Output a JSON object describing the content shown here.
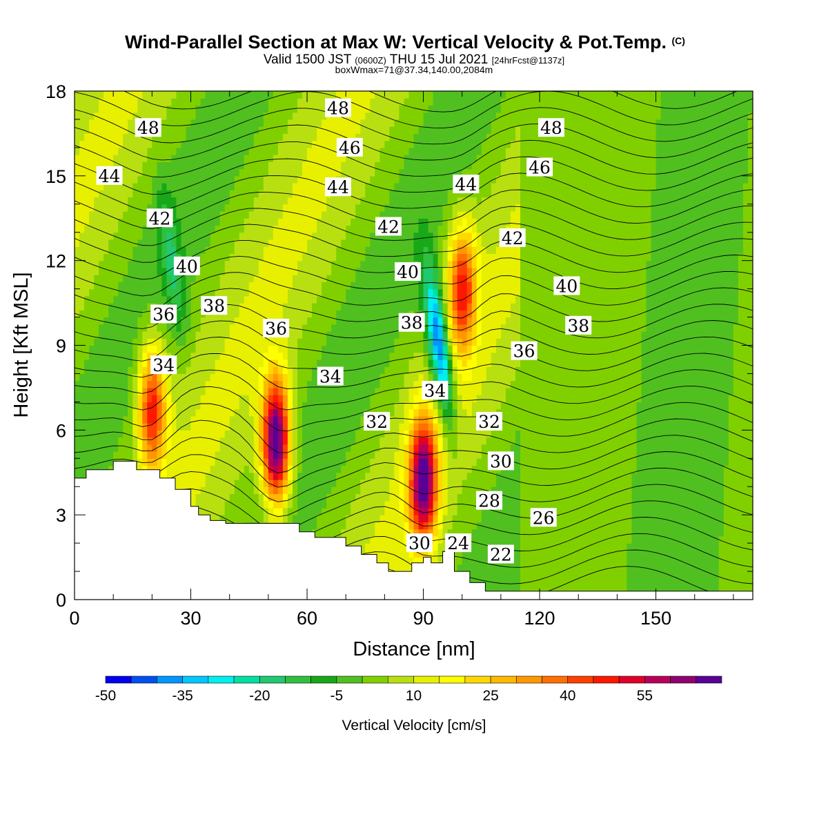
{
  "chart_data": {
    "type": "heatmap",
    "title": "Wind-Parallel Section at Max W: Vertical Velocity & Pot.Temp.",
    "title_mark": "(C)",
    "subtitle_parts": [
      "Valid 1500 JST ",
      "(0600Z)",
      " THU 15 Jul 2021 ",
      "[24hrFcst@1137z]"
    ],
    "subtitle2": "boxWmax=71@37.34,140.00,2084m",
    "xlabel": "Distance [nm]",
    "ylabel": "Height [Kft MSL]",
    "xlim": [
      0,
      175
    ],
    "ylim": [
      0,
      18
    ],
    "x_ticks": [
      0,
      30,
      60,
      90,
      120,
      150
    ],
    "y_ticks": [
      0,
      3,
      6,
      9,
      12,
      15,
      18
    ],
    "colorbar": {
      "label": "Vertical Velocity [cm/s]",
      "tick_labels": [
        "-50",
        "-35",
        "-20",
        "-5",
        "10",
        "25",
        "40",
        "55"
      ],
      "tick_values": [
        -50,
        -35,
        -20,
        -5,
        10,
        25,
        40,
        55
      ],
      "bins": [
        -50,
        -45,
        -40,
        -35,
        -30,
        -25,
        -20,
        -15,
        -10,
        -5,
        0,
        5,
        10,
        15,
        20,
        25,
        30,
        35,
        40,
        45,
        50,
        55,
        60,
        65
      ],
      "colors": [
        "#0000f0",
        "#0050f0",
        "#0096ff",
        "#00c8ff",
        "#00f0f0",
        "#00e0a0",
        "#20c870",
        "#30c040",
        "#18a818",
        "#50c020",
        "#80d000",
        "#b8e010",
        "#e8f000",
        "#ffff00",
        "#ffd800",
        "#ffb800",
        "#ff9800",
        "#ff7000",
        "#ff4000",
        "#ff1800",
        "#e00028",
        "#b8005a",
        "#900070",
        "#5a0096"
      ]
    },
    "updrafts": [
      {
        "x": 20,
        "z": 6.8,
        "w": 45
      },
      {
        "x": 52,
        "z": 5.6,
        "w": 71
      },
      {
        "x": 90,
        "z": 4.2,
        "w": 62
      },
      {
        "x": 100,
        "z": 11.0,
        "w": 42
      }
    ],
    "downdrafts": [
      {
        "x": 94,
        "z": 9.0,
        "w": -48
      },
      {
        "x": 25,
        "z": 12.0,
        "w": -15
      }
    ],
    "potential_temperature_labels": [
      {
        "text": "48",
        "x": 19,
        "z": 16.7
      },
      {
        "text": "48",
        "x": 68,
        "z": 17.4
      },
      {
        "text": "48",
        "x": 123,
        "z": 16.7
      },
      {
        "text": "46",
        "x": 71,
        "z": 16.0
      },
      {
        "text": "46",
        "x": 120,
        "z": 15.3
      },
      {
        "text": "44",
        "x": 9,
        "z": 15.0
      },
      {
        "text": "44",
        "x": 68,
        "z": 14.6
      },
      {
        "text": "44",
        "x": 101,
        "z": 14.7
      },
      {
        "text": "42",
        "x": 22,
        "z": 13.5
      },
      {
        "text": "42",
        "x": 81,
        "z": 13.2
      },
      {
        "text": "42",
        "x": 113,
        "z": 12.8
      },
      {
        "text": "40",
        "x": 29,
        "z": 11.8
      },
      {
        "text": "40",
        "x": 86,
        "z": 11.6
      },
      {
        "text": "40",
        "x": 127,
        "z": 11.1
      },
      {
        "text": "38",
        "x": 36,
        "z": 10.4
      },
      {
        "text": "38",
        "x": 87,
        "z": 9.8
      },
      {
        "text": "38",
        "x": 130,
        "z": 9.7
      },
      {
        "text": "36",
        "x": 23,
        "z": 10.1
      },
      {
        "text": "36",
        "x": 52,
        "z": 9.6
      },
      {
        "text": "36",
        "x": 116,
        "z": 8.8
      },
      {
        "text": "34",
        "x": 23,
        "z": 8.3
      },
      {
        "text": "34",
        "x": 66,
        "z": 7.9
      },
      {
        "text": "34",
        "x": 93,
        "z": 7.4
      },
      {
        "text": "32",
        "x": 78,
        "z": 6.3
      },
      {
        "text": "32",
        "x": 107,
        "z": 6.3
      },
      {
        "text": "30",
        "x": 110,
        "z": 4.9
      },
      {
        "text": "30",
        "x": 89,
        "z": 2.0
      },
      {
        "text": "28",
        "x": 107,
        "z": 3.5
      },
      {
        "text": "26",
        "x": 121,
        "z": 2.9
      },
      {
        "text": "24",
        "x": 99,
        "z": 2.0
      },
      {
        "text": "22",
        "x": 110,
        "z": 1.6
      }
    ],
    "terrain": [
      [
        0,
        4.3
      ],
      [
        3,
        4.3
      ],
      [
        3,
        4.6
      ],
      [
        10,
        4.6
      ],
      [
        10,
        4.9
      ],
      [
        16,
        4.9
      ],
      [
        16,
        4.6
      ],
      [
        22,
        4.6
      ],
      [
        22,
        4.3
      ],
      [
        26,
        4.3
      ],
      [
        26,
        3.9
      ],
      [
        30,
        3.9
      ],
      [
        30,
        3.3
      ],
      [
        32,
        3.3
      ],
      [
        32,
        3.0
      ],
      [
        35,
        3.0
      ],
      [
        35,
        2.8
      ],
      [
        39,
        2.8
      ],
      [
        39,
        2.7
      ],
      [
        48,
        2.7
      ],
      [
        48,
        2.7
      ],
      [
        58,
        2.7
      ],
      [
        58,
        2.4
      ],
      [
        62,
        2.4
      ],
      [
        62,
        2.2
      ],
      [
        70,
        2.2
      ],
      [
        70,
        1.9
      ],
      [
        74,
        1.9
      ],
      [
        74,
        1.6
      ],
      [
        78,
        1.6
      ],
      [
        78,
        1.3
      ],
      [
        81,
        1.3
      ],
      [
        81,
        1.0
      ],
      [
        87,
        1.0
      ],
      [
        87,
        1.3
      ],
      [
        90,
        1.3
      ],
      [
        90,
        1.5
      ],
      [
        92,
        1.5
      ],
      [
        92,
        1.3
      ],
      [
        95,
        1.3
      ],
      [
        95,
        1.7
      ],
      [
        98,
        1.7
      ],
      [
        98,
        1.0
      ],
      [
        102,
        1.0
      ],
      [
        102,
        0.6
      ],
      [
        106,
        0.6
      ],
      [
        106,
        0.3
      ],
      [
        175,
        0.3
      ]
    ]
  }
}
